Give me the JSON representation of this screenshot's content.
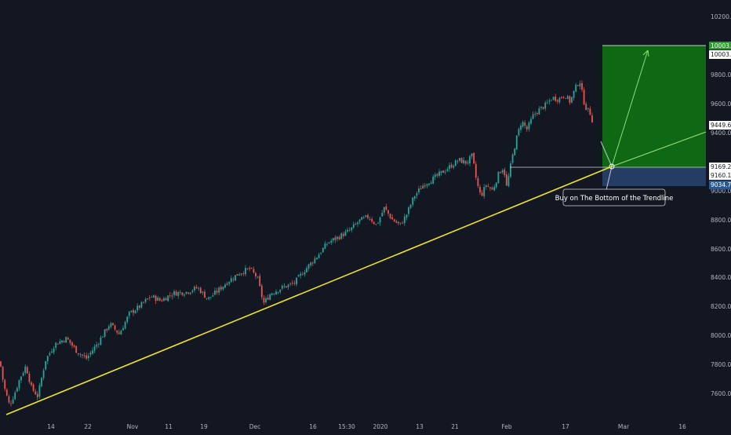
{
  "theme": {
    "background": "#131722",
    "axis_text": "#b2b5be",
    "up_candle": "#26a69a",
    "down_candle": "#ef5350",
    "trendline": "#f5e61e",
    "target_zone": "#0f6d14",
    "stop_zone": "#263f66",
    "target_badge": "#2a9d2a",
    "stop_badge": "#2d5a8e"
  },
  "annotation": {
    "callout": "Buy on The Bottom of the Trendline"
  },
  "price_badges": {
    "target": "10003.6",
    "target_outline": "10003.6",
    "current": "9449.6",
    "entry": "9169.2",
    "entry_alt": "9160.1",
    "stop": "9034.7"
  },
  "chart_data": {
    "type": "candlestick",
    "title": "",
    "y_ticks": [
      "10200.0",
      "9800.0",
      "9600.0",
      "9400.0",
      "9000.0",
      "8800.0",
      "8600.0",
      "8400.0",
      "8200.0",
      "8000.0",
      "7800.0",
      "7600.0"
    ],
    "ylim": [
      7450,
      10310
    ],
    "x_ticks": [
      "14",
      "22",
      "Nov",
      "11",
      "19",
      "Dec",
      "16",
      "15:30",
      "2020",
      "13",
      "21",
      "Feb",
      "17",
      "Mar",
      "16"
    ],
    "series_path": [
      [
        0,
        7820
      ],
      [
        5,
        7650
      ],
      [
        12,
        7520
      ],
      [
        18,
        7590
      ],
      [
        25,
        7700
      ],
      [
        33,
        7790
      ],
      [
        40,
        7640
      ],
      [
        48,
        7580
      ],
      [
        58,
        7830
      ],
      [
        70,
        7940
      ],
      [
        85,
        7980
      ],
      [
        98,
        7890
      ],
      [
        110,
        7840
      ],
      [
        125,
        7950
      ],
      [
        140,
        8080
      ],
      [
        152,
        8010
      ],
      [
        165,
        8150
      ],
      [
        178,
        8200
      ],
      [
        192,
        8270
      ],
      [
        205,
        8240
      ],
      [
        220,
        8290
      ],
      [
        238,
        8300
      ],
      [
        252,
        8330
      ],
      [
        265,
        8250
      ],
      [
        278,
        8310
      ],
      [
        290,
        8370
      ],
      [
        305,
        8430
      ],
      [
        318,
        8460
      ],
      [
        328,
        8400
      ],
      [
        336,
        8220
      ],
      [
        345,
        8290
      ],
      [
        360,
        8330
      ],
      [
        375,
        8360
      ],
      [
        390,
        8460
      ],
      [
        405,
        8550
      ],
      [
        418,
        8640
      ],
      [
        432,
        8680
      ],
      [
        445,
        8720
      ],
      [
        458,
        8790
      ],
      [
        470,
        8820
      ],
      [
        480,
        8760
      ],
      [
        490,
        8880
      ],
      [
        500,
        8800
      ],
      [
        510,
        8760
      ],
      [
        518,
        8830
      ],
      [
        528,
        8960
      ],
      [
        540,
        9040
      ],
      [
        552,
        9080
      ],
      [
        565,
        9130
      ],
      [
        575,
        9170
      ],
      [
        585,
        9210
      ],
      [
        595,
        9190
      ],
      [
        602,
        9240
      ],
      [
        608,
        9050
      ],
      [
        613,
        8960
      ],
      [
        620,
        9040
      ],
      [
        628,
        9000
      ],
      [
        636,
        9120
      ],
      [
        642,
        9160
      ],
      [
        646,
        9020
      ],
      [
        652,
        9200
      ],
      [
        658,
        9350
      ],
      [
        665,
        9480
      ],
      [
        672,
        9420
      ],
      [
        680,
        9520
      ],
      [
        688,
        9560
      ],
      [
        696,
        9590
      ],
      [
        704,
        9640
      ],
      [
        712,
        9630
      ],
      [
        720,
        9660
      ],
      [
        727,
        9610
      ],
      [
        733,
        9700
      ],
      [
        739,
        9760
      ],
      [
        744,
        9620
      ],
      [
        748,
        9560
      ],
      [
        752,
        9540
      ],
      [
        757,
        9450
      ]
    ],
    "trendline": {
      "from": [
        8,
        7440
      ],
      "to": [
        780,
        9148
      ]
    },
    "long_position": {
      "entry": 9169.2,
      "target": 10003.6,
      "stop": 9034.7
    }
  }
}
